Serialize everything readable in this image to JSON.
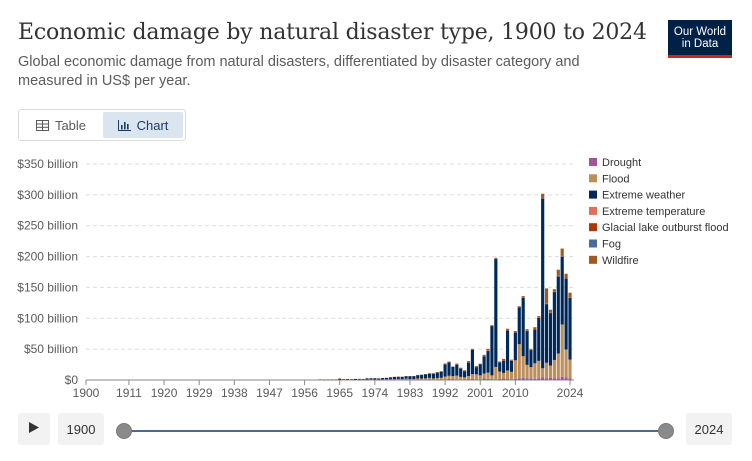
{
  "header": {
    "title": "Economic damage by natural disaster type, 1900 to 2024",
    "subtitle": "Global economic damage from natural disasters, differentiated by disaster category and measured in US$ per year.",
    "logo_line1": "Our World",
    "logo_line2": "in Data"
  },
  "tabs": [
    {
      "label": "Table",
      "icon": "table-icon",
      "active": false
    },
    {
      "label": "Chart",
      "icon": "chart-icon",
      "active": true
    }
  ],
  "timeline": {
    "start_label": "1900",
    "end_label": "2024",
    "start_value": 1900,
    "end_value": 2024
  },
  "chart_data": {
    "type": "bar",
    "stacked": true,
    "x": [
      1900,
      1901,
      1902,
      1903,
      1904,
      1905,
      1906,
      1907,
      1908,
      1909,
      1910,
      1911,
      1912,
      1913,
      1914,
      1915,
      1916,
      1917,
      1918,
      1919,
      1920,
      1921,
      1922,
      1923,
      1924,
      1925,
      1926,
      1927,
      1928,
      1929,
      1930,
      1931,
      1932,
      1933,
      1934,
      1935,
      1936,
      1937,
      1938,
      1939,
      1940,
      1941,
      1942,
      1943,
      1944,
      1945,
      1946,
      1947,
      1948,
      1949,
      1950,
      1951,
      1952,
      1953,
      1954,
      1955,
      1956,
      1957,
      1958,
      1959,
      1960,
      1961,
      1962,
      1963,
      1964,
      1965,
      1966,
      1967,
      1968,
      1969,
      1970,
      1971,
      1972,
      1973,
      1974,
      1975,
      1976,
      1977,
      1978,
      1979,
      1980,
      1981,
      1982,
      1983,
      1984,
      1985,
      1986,
      1987,
      1988,
      1989,
      1990,
      1991,
      1992,
      1993,
      1994,
      1995,
      1996,
      1997,
      1998,
      1999,
      2000,
      2001,
      2002,
      2003,
      2004,
      2005,
      2006,
      2007,
      2008,
      2009,
      2010,
      2011,
      2012,
      2013,
      2014,
      2015,
      2016,
      2017,
      2018,
      2019,
      2020,
      2021,
      2022,
      2023,
      2024
    ],
    "x_ticks": [
      1900,
      1911,
      1920,
      1929,
      1938,
      1947,
      1956,
      1965,
      1974,
      1983,
      1992,
      2001,
      2010,
      2024
    ],
    "y_ticks": [
      0,
      50,
      100,
      150,
      200,
      250,
      300,
      350
    ],
    "y_tick_labels": [
      "$0",
      "$50 billion",
      "$100 billion",
      "$150 billion",
      "$200 billion",
      "$250 billion",
      "$300 billion",
      "$350 billion"
    ],
    "ylim": [
      0,
      350
    ],
    "unit": "billion US$",
    "grid": true,
    "legend_position": "right",
    "series": [
      {
        "name": "Drought",
        "color": "#a2559c",
        "values": [
          0,
          0,
          0,
          0,
          0,
          0,
          0,
          0,
          0,
          0,
          0,
          0,
          0,
          0,
          0,
          0,
          0,
          0,
          0,
          0,
          0,
          0,
          0,
          0,
          0,
          0,
          0,
          0,
          0,
          0,
          0,
          0,
          0,
          0,
          0,
          0,
          0,
          0,
          0,
          0,
          0,
          0,
          0,
          0,
          0,
          0,
          0,
          0,
          0,
          0,
          0,
          0,
          0,
          0,
          0,
          0,
          0,
          0,
          0,
          0,
          0,
          0,
          0,
          0,
          0,
          0.1,
          0,
          0,
          0,
          0,
          0.1,
          0,
          0.2,
          0,
          0.1,
          0.2,
          0.3,
          0.3,
          0.2,
          0.3,
          0.5,
          0.3,
          0.8,
          0.5,
          0.3,
          0.4,
          0.6,
          0.5,
          0.8,
          0.6,
          0.7,
          0.8,
          1.2,
          1.8,
          1.5,
          1.2,
          1.0,
          0.8,
          1.5,
          2.0,
          1.2,
          1.0,
          2.5,
          2.0,
          1.5,
          1.2,
          1.8,
          2.5,
          1.5,
          1.2,
          2.0,
          3.0,
          3.5,
          2.5,
          2.8,
          2.0,
          3.0,
          4.0,
          3.0,
          3.5,
          2.5,
          3.0,
          5.0,
          4.5,
          3.0
        ]
      },
      {
        "name": "Flood",
        "color": "#bc8e5a",
        "values": [
          0,
          0,
          0,
          0,
          0,
          0,
          0,
          0,
          0,
          0,
          0,
          0,
          0,
          0,
          0,
          0,
          0,
          0,
          0,
          0,
          0,
          0,
          0,
          0,
          0,
          0,
          0,
          0,
          0,
          0,
          0,
          0.1,
          0,
          0,
          0,
          0,
          0,
          0,
          0,
          0,
          0,
          0,
          0,
          0,
          0,
          0,
          0,
          0,
          0,
          0,
          0,
          0,
          0,
          0,
          0,
          0,
          0,
          0,
          0,
          0,
          0.2,
          0.1,
          0.1,
          0.1,
          0.2,
          0.3,
          0.2,
          0.2,
          0.3,
          0.3,
          0.4,
          0.3,
          0.5,
          0.8,
          0.6,
          0.5,
          0.6,
          0.7,
          0.9,
          0.8,
          1.2,
          1.0,
          1.4,
          1.1,
          1.3,
          2.0,
          1.8,
          2.2,
          2.6,
          1.9,
          2.5,
          2.8,
          4.5,
          5.0,
          4.8,
          6.0,
          4.0,
          3.5,
          5.0,
          7.5,
          8.0,
          6.5,
          8.0,
          10.0,
          6.0,
          20.0,
          12.0,
          9.0,
          14.0,
          12.0,
          30.0,
          55.0,
          35.0,
          22.0,
          18.0,
          25.0,
          28.0,
          15.0,
          25.0,
          20.0,
          30.0,
          40.0,
          85.0,
          45.0,
          30.0
        ]
      },
      {
        "name": "Extreme weather",
        "color": "#00295b",
        "values": [
          0,
          0,
          0,
          0,
          0,
          0,
          0,
          0,
          0,
          0,
          0,
          0,
          0,
          0,
          0,
          0,
          0,
          0,
          0,
          0,
          0,
          0,
          0,
          0,
          0,
          0,
          0,
          0,
          0,
          0,
          0,
          0,
          0,
          0,
          0,
          0,
          0,
          0,
          0,
          0,
          0,
          0,
          0,
          0,
          0,
          0,
          0,
          0,
          0,
          0,
          0,
          0,
          0,
          0,
          0,
          0,
          0,
          0,
          0,
          0,
          0.5,
          0.3,
          0.4,
          0.4,
          0.5,
          1.8,
          1.0,
          1.2,
          0.9,
          1.5,
          1.2,
          1.1,
          2.0,
          2.0,
          2.2,
          1.8,
          2.3,
          2.5,
          3.2,
          4.0,
          3.5,
          3.8,
          4.0,
          4.5,
          4.8,
          5.5,
          6.0,
          6.5,
          7.0,
          8.0,
          9.0,
          10.0,
          20.0,
          22.0,
          15.0,
          18.0,
          14.0,
          10.0,
          22.0,
          40.0,
          12.0,
          18.0,
          28.0,
          35.0,
          80.0,
          175.0,
          15.0,
          20.0,
          65.0,
          18.0,
          45.0,
          60.0,
          95.0,
          55.0,
          28.0,
          55.0,
          70.0,
          275.0,
          95.0,
          85.0,
          110.0,
          125.0,
          110.0,
          115.0,
          100.0
        ]
      },
      {
        "name": "Extreme temperature",
        "color": "#e56e5a",
        "values": [
          0,
          0,
          0,
          0,
          0,
          0,
          0,
          0,
          0,
          0,
          0,
          0,
          0,
          0,
          0,
          0,
          0,
          0,
          0,
          0,
          0,
          0,
          0,
          0,
          0,
          0,
          0,
          0,
          0,
          0,
          0,
          0,
          0,
          0,
          0,
          0,
          0,
          0,
          0,
          0,
          0,
          0,
          0,
          0,
          0,
          0,
          0,
          0,
          0,
          0,
          0,
          0,
          0,
          0,
          0,
          0,
          0,
          0,
          0,
          0,
          0,
          0,
          0,
          0,
          0,
          0,
          0,
          0,
          0,
          0,
          0,
          0,
          0,
          0,
          0,
          0,
          0,
          0,
          0,
          0,
          0.1,
          0,
          0,
          0,
          0,
          0,
          0,
          0,
          0,
          0,
          0.2,
          0,
          0.1,
          0.3,
          0,
          0.2,
          0.1,
          0,
          0.2,
          0.1,
          0.1,
          0,
          0.3,
          0.5,
          0.4,
          0.3,
          0.2,
          0.1,
          0.6,
          0.3,
          0.5,
          0.4,
          0.5,
          0.3,
          0.2,
          0.6,
          0.5,
          0.8,
          0.5,
          0.4,
          0.6,
          0.8,
          1.0,
          0.7,
          0.5
        ]
      },
      {
        "name": "Glacial lake outburst flood",
        "color": "#b13507",
        "values": [
          0,
          0,
          0,
          0,
          0,
          0,
          0,
          0,
          0,
          0,
          0,
          0,
          0,
          0,
          0,
          0,
          0,
          0,
          0,
          0,
          0,
          0,
          0,
          0,
          0,
          0,
          0,
          0,
          0,
          0,
          0,
          0,
          0,
          0,
          0,
          0,
          0,
          0,
          0,
          0,
          0,
          0,
          0,
          0,
          0,
          0,
          0,
          0,
          0,
          0,
          0,
          0,
          0,
          0,
          0,
          0,
          0,
          0,
          0,
          0,
          0,
          0,
          0,
          0,
          0,
          0,
          0,
          0,
          0,
          0,
          0,
          0,
          0,
          0,
          0,
          0,
          0,
          0,
          0,
          0,
          0,
          0,
          0,
          0,
          0,
          0,
          0,
          0,
          0,
          0,
          0,
          0,
          0,
          0,
          0,
          0,
          0,
          0,
          0,
          0,
          0,
          0,
          0,
          0,
          0,
          0,
          0,
          0,
          0,
          0,
          0,
          0,
          0,
          0,
          0,
          0,
          0,
          0,
          0,
          0,
          0,
          0,
          0,
          1.0,
          0
        ]
      },
      {
        "name": "Fog",
        "color": "#4c6a9c",
        "values": [
          0,
          0,
          0,
          0,
          0,
          0,
          0,
          0,
          0,
          0,
          0,
          0,
          0,
          0,
          0,
          0,
          0,
          0,
          0,
          0,
          0,
          0,
          0,
          0,
          0,
          0,
          0,
          0,
          0,
          0,
          0,
          0,
          0,
          0,
          0,
          0,
          0,
          0,
          0,
          0,
          0,
          0,
          0,
          0,
          0,
          0,
          0,
          0,
          0,
          0,
          0,
          0,
          0,
          0,
          0,
          0,
          0,
          0,
          0,
          0,
          0,
          0,
          0,
          0,
          0,
          0,
          0,
          0,
          0,
          0,
          0,
          0,
          0,
          0,
          0,
          0,
          0,
          0,
          0,
          0,
          0,
          0,
          0,
          0,
          0,
          0,
          0,
          0,
          0,
          0,
          0,
          0,
          0,
          0,
          0,
          0,
          0,
          0,
          0,
          0,
          0,
          0,
          0,
          0,
          0,
          0,
          0,
          0,
          0,
          0,
          0,
          0,
          0,
          0,
          0,
          0,
          0,
          0,
          0,
          0,
          0,
          0,
          0,
          0,
          0
        ]
      },
      {
        "name": "Wildfire",
        "color": "#a2591f",
        "values": [
          0,
          0,
          0,
          0,
          0,
          0,
          0,
          0,
          0,
          0,
          0,
          0,
          0,
          0,
          0,
          0,
          0,
          0,
          0,
          0,
          0,
          0,
          0,
          0,
          0,
          0,
          0,
          0,
          0,
          0,
          0,
          0,
          0,
          0,
          0,
          0,
          0,
          0,
          0,
          0,
          0,
          0,
          0,
          0,
          0,
          0,
          0,
          0,
          0,
          0,
          0,
          0,
          0,
          0,
          0,
          0,
          0,
          0,
          0,
          0,
          0,
          0,
          0,
          0,
          0,
          0,
          0,
          0,
          0,
          0,
          0.1,
          0,
          0,
          0,
          0,
          0,
          0,
          0,
          0.1,
          0,
          0.1,
          0.2,
          0,
          0.3,
          0.1,
          0.4,
          0.2,
          0.3,
          0.5,
          0.3,
          0.4,
          0.6,
          1.0,
          0.8,
          0.7,
          1.2,
          0.9,
          1.5,
          2.0,
          0.8,
          1.5,
          1.0,
          2.0,
          3.0,
          1.2,
          1.5,
          1.0,
          2.5,
          2.0,
          1.5,
          1.8,
          1.2,
          2.0,
          2.5,
          1.5,
          3.0,
          2.0,
          7.0,
          25.0,
          5.0,
          4.0,
          10.0,
          12.0,
          6.0,
          8.0
        ]
      }
    ]
  }
}
